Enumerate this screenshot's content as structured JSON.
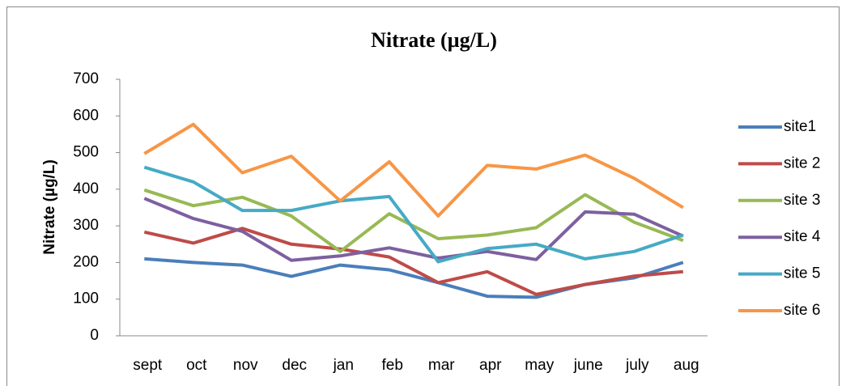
{
  "chart_data": {
    "type": "line",
    "title": "Nitrate (µg/L)",
    "y_label": "Nitrate (µg/L)",
    "categories": [
      "sept",
      "oct",
      "nov",
      "dec",
      "jan",
      "feb",
      "mar",
      "apr",
      "may",
      "june",
      "july",
      "aug"
    ],
    "ylim": [
      0,
      700
    ],
    "yticks": [
      0,
      100,
      200,
      300,
      400,
      500,
      600,
      700
    ],
    "grid": false,
    "legend": "right",
    "series": [
      {
        "name": "site1",
        "color": "#4a7ebb",
        "values": [
          210,
          200,
          193,
          162,
          193,
          180,
          145,
          108,
          105,
          140,
          158,
          200
        ]
      },
      {
        "name": "site 2",
        "color": "#be4b48",
        "values": [
          283,
          253,
          293,
          250,
          237,
          215,
          145,
          175,
          113,
          140,
          163,
          175
        ]
      },
      {
        "name": "site 3",
        "color": "#98b954",
        "values": [
          398,
          355,
          378,
          327,
          230,
          333,
          265,
          275,
          295,
          385,
          310,
          260
        ]
      },
      {
        "name": "site 4",
        "color": "#7d60a0",
        "values": [
          375,
          320,
          285,
          206,
          218,
          240,
          212,
          230,
          208,
          338,
          332,
          272
        ]
      },
      {
        "name": "site 5",
        "color": "#46aac5",
        "values": [
          460,
          420,
          342,
          342,
          368,
          380,
          202,
          238,
          250,
          210,
          230,
          275
        ]
      },
      {
        "name": "site 6",
        "color": "#f79646",
        "values": [
          497,
          577,
          445,
          490,
          368,
          475,
          327,
          465,
          455,
          493,
          430,
          350
        ]
      }
    ]
  }
}
